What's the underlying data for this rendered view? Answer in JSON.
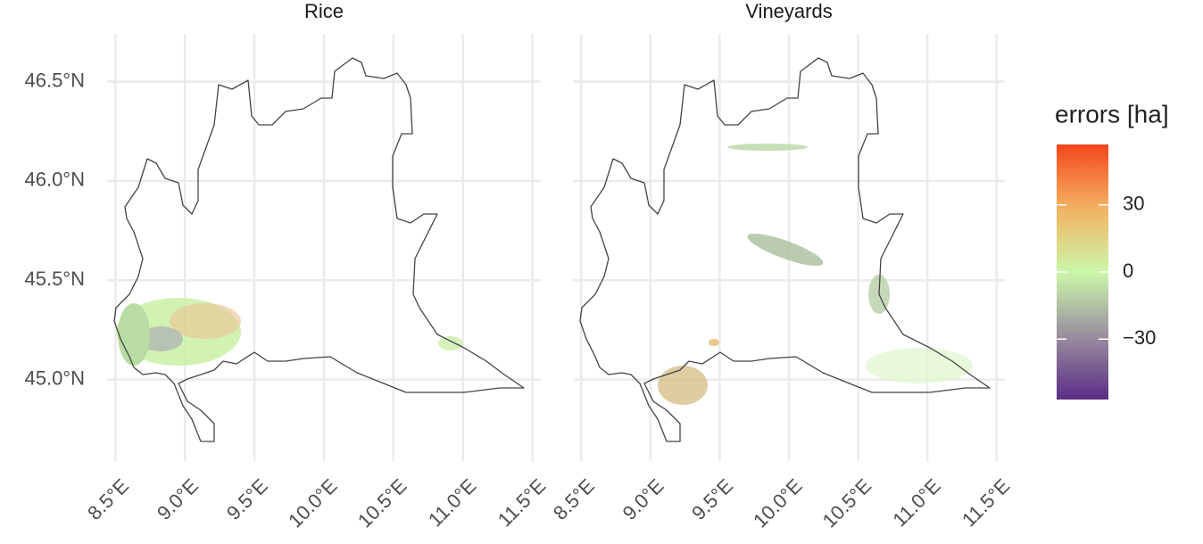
{
  "chart_data": {
    "type": "map",
    "facets": [
      "Rice",
      "Vineyards"
    ],
    "xlim": [
      8.44,
      11.56
    ],
    "ylim": [
      44.59,
      46.74
    ],
    "xticks": [
      {
        "value": 8.5,
        "label": "8.5°E"
      },
      {
        "value": 9.0,
        "label": "9.0°E"
      },
      {
        "value": 9.5,
        "label": "9.5°E"
      },
      {
        "value": 10.0,
        "label": "10.0°E"
      },
      {
        "value": 10.5,
        "label": "10.5°E"
      },
      {
        "value": 11.0,
        "label": "11.0°E"
      },
      {
        "value": 11.5,
        "label": "11.5°E"
      }
    ],
    "yticks": [
      {
        "value": 45.0,
        "label": "45.0°N"
      },
      {
        "value": 45.5,
        "label": "45.5°N"
      },
      {
        "value": 46.0,
        "label": "46.0°N"
      },
      {
        "value": 46.5,
        "label": "46.5°N"
      }
    ],
    "grid": true,
    "legend": {
      "title": "errors [ha]",
      "limits": [
        -57,
        57
      ],
      "ticks": [
        30,
        0,
        {
          "value": -30,
          "label": "−30"
        }
      ],
      "colors": [
        "#5b2c86",
        "#9a8f9e",
        "#ccf7aa",
        "#f3b262",
        "#f4461c"
      ]
    }
  }
}
